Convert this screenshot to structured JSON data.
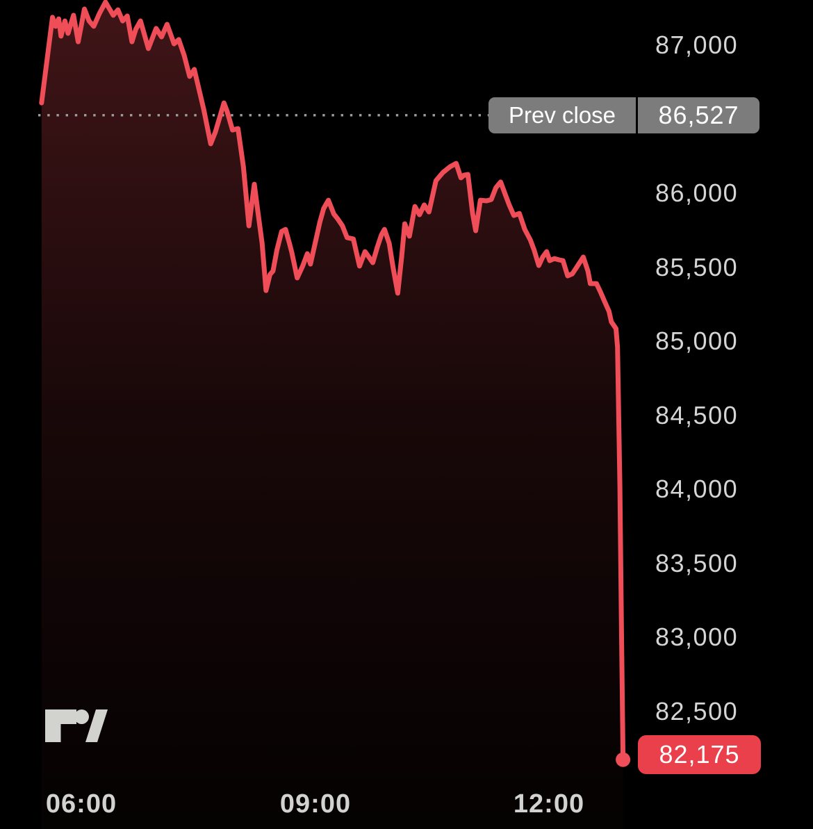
{
  "chart_data": {
    "type": "area",
    "title": "",
    "x_axis": {
      "tick_labels": [
        "06:00",
        "09:00",
        "12:00"
      ],
      "tick_hours": [
        6,
        9,
        12
      ],
      "range_hours": [
        5.45,
        13.0
      ]
    },
    "y_axis": {
      "side": "right",
      "tick_labels": [
        "87,000",
        "86,000",
        "85,500",
        "85,000",
        "84,500",
        "84,000",
        "83,500",
        "83,000",
        "82,500"
      ],
      "tick_values": [
        87000,
        86000,
        85500,
        85000,
        84500,
        84000,
        83500,
        83000,
        82500
      ],
      "ylim": [
        82000,
        87300
      ]
    },
    "prev_close": {
      "label": "Prev close",
      "display": "86,527",
      "value": 86527
    },
    "last": {
      "display": "82,175",
      "value": 82175
    },
    "grid": "off",
    "legend": "none",
    "series": [
      {
        "name": "price",
        "points": [
          [
            5.49,
            86610
          ],
          [
            5.63,
            87188
          ],
          [
            5.67,
            87127
          ],
          [
            5.71,
            87178
          ],
          [
            5.74,
            87061
          ],
          [
            5.79,
            87164
          ],
          [
            5.83,
            87080
          ],
          [
            5.9,
            87202
          ],
          [
            5.96,
            87023
          ],
          [
            6.04,
            87244
          ],
          [
            6.1,
            87164
          ],
          [
            6.16,
            87127
          ],
          [
            6.23,
            87211
          ],
          [
            6.31,
            87291
          ],
          [
            6.41,
            87202
          ],
          [
            6.47,
            87239
          ],
          [
            6.53,
            87164
          ],
          [
            6.59,
            87197
          ],
          [
            6.65,
            87023
          ],
          [
            6.7,
            87108
          ],
          [
            6.76,
            87164
          ],
          [
            6.81,
            87070
          ],
          [
            6.86,
            86977
          ],
          [
            6.96,
            87113
          ],
          [
            7.03,
            87056
          ],
          [
            7.1,
            87141
          ],
          [
            7.19,
            87009
          ],
          [
            7.25,
            87038
          ],
          [
            7.32,
            86930
          ],
          [
            7.39,
            86789
          ],
          [
            7.45,
            86836
          ],
          [
            7.57,
            86568
          ],
          [
            7.66,
            86334
          ],
          [
            7.72,
            86413
          ],
          [
            7.83,
            86610
          ],
          [
            7.87,
            86554
          ],
          [
            7.94,
            86427
          ],
          [
            8.01,
            86437
          ],
          [
            8.08,
            86179
          ],
          [
            8.15,
            85780
          ],
          [
            8.22,
            86061
          ],
          [
            8.26,
            85897
          ],
          [
            8.32,
            85662
          ],
          [
            8.37,
            85343
          ],
          [
            8.42,
            85451
          ],
          [
            8.46,
            85475
          ],
          [
            8.51,
            85616
          ],
          [
            8.57,
            85742
          ],
          [
            8.62,
            85756
          ],
          [
            8.67,
            85662
          ],
          [
            8.7,
            85601
          ],
          [
            8.77,
            85428
          ],
          [
            8.84,
            85508
          ],
          [
            8.9,
            85592
          ],
          [
            8.94,
            85522
          ],
          [
            9.0,
            85662
          ],
          [
            9.06,
            85803
          ],
          [
            9.11,
            85897
          ],
          [
            9.17,
            85953
          ],
          [
            9.24,
            85860
          ],
          [
            9.29,
            85827
          ],
          [
            9.35,
            85780
          ],
          [
            9.41,
            85700
          ],
          [
            9.49,
            85691
          ],
          [
            9.57,
            85508
          ],
          [
            9.64,
            85606
          ],
          [
            9.69,
            85569
          ],
          [
            9.74,
            85531
          ],
          [
            9.8,
            85639
          ],
          [
            9.85,
            85719
          ],
          [
            9.89,
            85756
          ],
          [
            9.95,
            85662
          ],
          [
            10.0,
            85498
          ],
          [
            10.06,
            85325
          ],
          [
            10.11,
            85569
          ],
          [
            10.15,
            85794
          ],
          [
            10.21,
            85710
          ],
          [
            10.28,
            85911
          ],
          [
            10.34,
            85855
          ],
          [
            10.4,
            85921
          ],
          [
            10.46,
            85874
          ],
          [
            10.55,
            86085
          ],
          [
            10.64,
            86141
          ],
          [
            10.73,
            86179
          ],
          [
            10.81,
            86202
          ],
          [
            10.87,
            86104
          ],
          [
            10.91,
            86122
          ],
          [
            10.96,
            86127
          ],
          [
            11.02,
            85864
          ],
          [
            11.06,
            85747
          ],
          [
            11.12,
            85953
          ],
          [
            11.2,
            85949
          ],
          [
            11.26,
            85958
          ],
          [
            11.32,
            86038
          ],
          [
            11.38,
            86076
          ],
          [
            11.44,
            85991
          ],
          [
            11.49,
            85921
          ],
          [
            11.55,
            85850
          ],
          [
            11.62,
            85864
          ],
          [
            11.69,
            85756
          ],
          [
            11.76,
            85686
          ],
          [
            11.81,
            85616
          ],
          [
            11.87,
            85512
          ],
          [
            11.92,
            85569
          ],
          [
            11.97,
            85606
          ],
          [
            12.01,
            85545
          ],
          [
            12.07,
            85559
          ],
          [
            12.13,
            85550
          ],
          [
            12.18,
            85545
          ],
          [
            12.24,
            85442
          ],
          [
            12.3,
            85456
          ],
          [
            12.37,
            85512
          ],
          [
            12.44,
            85569
          ],
          [
            12.5,
            85475
          ],
          [
            12.53,
            85390
          ],
          [
            12.61,
            85390
          ],
          [
            12.66,
            85334
          ],
          [
            12.71,
            85273
          ],
          [
            12.77,
            85203
          ],
          [
            12.8,
            85132
          ],
          [
            12.86,
            85086
          ],
          [
            12.88,
            84959
          ],
          [
            12.91,
            84020
          ],
          [
            12.93,
            83082
          ],
          [
            12.945,
            82425
          ],
          [
            12.95,
            82175
          ]
        ]
      }
    ],
    "colors": {
      "background": "#000000",
      "line": "#ef4d57",
      "area_top": "rgba(239,77,87,0.27)",
      "area_mid": "rgba(239,77,87,0.10)",
      "area_bottom": "rgba(239,77,87,0.02)",
      "last_badge": "#e9404b",
      "prev_close_badge": "#7c7c7c",
      "dotted_line": "#9f9f9f",
      "tick_text": "#d5d5d5"
    }
  },
  "branding": {
    "logo_icon": "tradingview-logo"
  }
}
